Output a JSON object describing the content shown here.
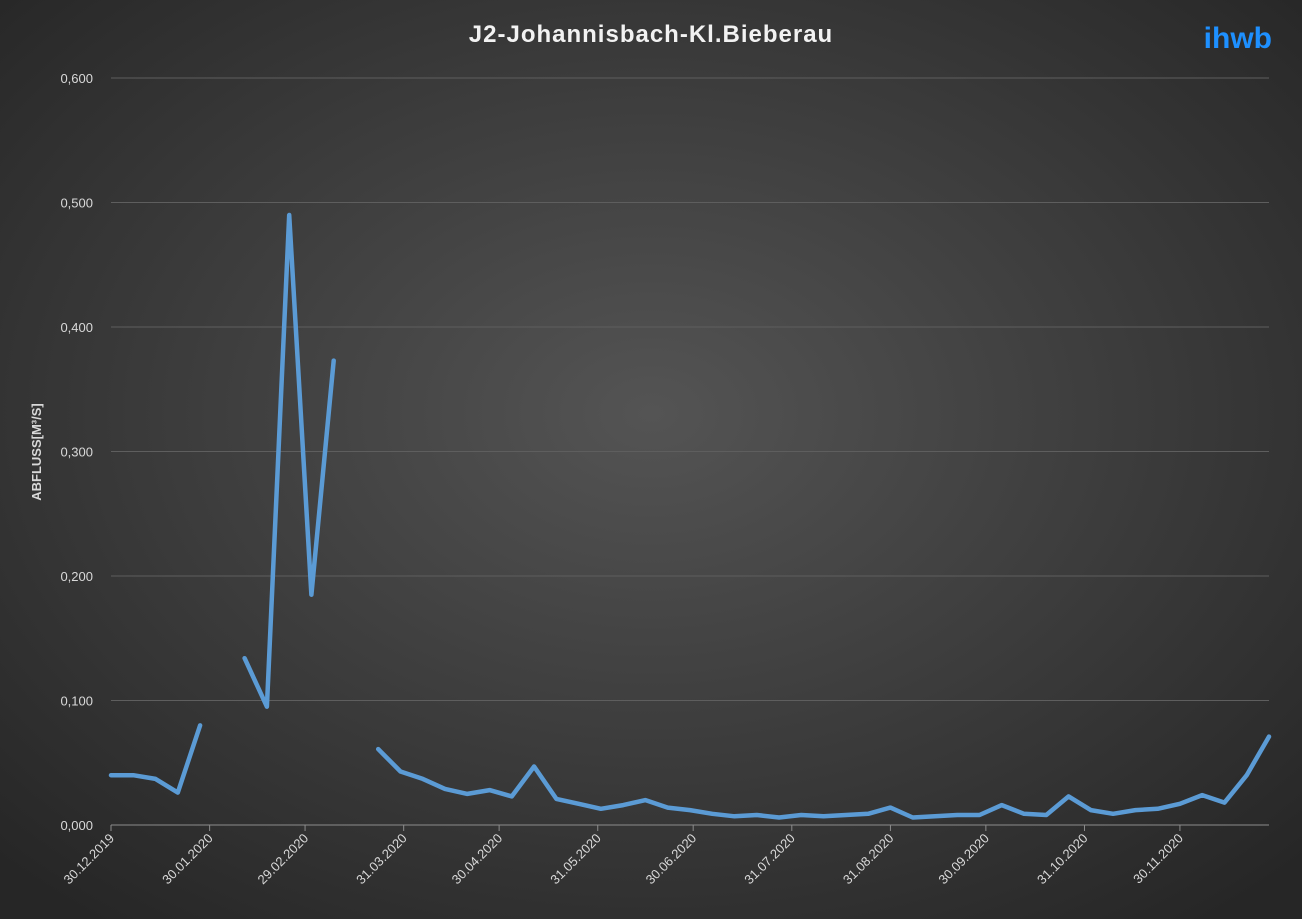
{
  "chart_data": {
    "type": "line",
    "title": "J2-Johannisbach-Kl.Bieberau",
    "logo": "ihwb",
    "y_label": "ABFLUSS[M³/S]",
    "x": [
      "2019-12-30",
      "2020-01-06",
      "2020-01-13",
      "2020-01-20",
      "2020-01-27",
      "2020-02-03",
      "2020-02-10",
      "2020-02-17",
      "2020-02-24",
      "2020-03-02",
      "2020-03-09",
      "2020-03-16",
      "2020-03-23",
      "2020-03-30",
      "2020-04-06",
      "2020-04-13",
      "2020-04-20",
      "2020-04-27",
      "2020-05-04",
      "2020-05-11",
      "2020-05-18",
      "2020-05-25",
      "2020-06-01",
      "2020-06-08",
      "2020-06-15",
      "2020-06-22",
      "2020-06-29",
      "2020-07-06",
      "2020-07-13",
      "2020-07-20",
      "2020-07-27",
      "2020-08-03",
      "2020-08-10",
      "2020-08-17",
      "2020-08-24",
      "2020-08-31",
      "2020-09-07",
      "2020-09-14",
      "2020-09-21",
      "2020-09-28",
      "2020-10-05",
      "2020-10-12",
      "2020-10-19",
      "2020-10-26",
      "2020-11-02",
      "2020-11-09",
      "2020-11-16",
      "2020-11-23",
      "2020-11-30",
      "2020-12-07",
      "2020-12-14",
      "2020-12-21",
      "2020-12-28"
    ],
    "series": [
      {
        "name": "Abfluss",
        "color": "#5b9bd5",
        "values": [
          0.04,
          0.04,
          0.037,
          0.026,
          0.08,
          null,
          0.134,
          0.095,
          0.49,
          0.185,
          0.373,
          null,
          0.061,
          0.043,
          0.037,
          0.029,
          0.025,
          0.028,
          0.023,
          0.047,
          0.021,
          0.017,
          0.013,
          0.016,
          0.02,
          0.014,
          0.012,
          0.009,
          0.007,
          0.008,
          0.006,
          0.008,
          0.007,
          0.008,
          0.009,
          0.014,
          0.006,
          0.007,
          0.008,
          0.008,
          0.016,
          0.009,
          0.008,
          0.023,
          0.012,
          0.009,
          0.012,
          0.013,
          0.017,
          0.024,
          0.018,
          0.04,
          0.071
        ]
      }
    ],
    "xlim": [
      "2019-12-30",
      "2020-12-28"
    ],
    "xticks": [
      {
        "value": "2019-12-30",
        "label": "30.12.2019"
      },
      {
        "value": "2020-01-30",
        "label": "30.01.2020"
      },
      {
        "value": "2020-02-29",
        "label": "29.02.2020"
      },
      {
        "value": "2020-03-31",
        "label": "31.03.2020"
      },
      {
        "value": "2020-04-30",
        "label": "30.04.2020"
      },
      {
        "value": "2020-05-31",
        "label": "31.05.2020"
      },
      {
        "value": "2020-06-30",
        "label": "30.06.2020"
      },
      {
        "value": "2020-07-31",
        "label": "31.07.2020"
      },
      {
        "value": "2020-08-31",
        "label": "31.08.2020"
      },
      {
        "value": "2020-09-30",
        "label": "30.09.2020"
      },
      {
        "value": "2020-10-31",
        "label": "31.10.2020"
      },
      {
        "value": "2020-11-30",
        "label": "30.11.2020"
      }
    ],
    "ylim": [
      0,
      0.6
    ],
    "yticks": [
      {
        "value": 0,
        "label": "0,000"
      },
      {
        "value": 0.1,
        "label": "0,100"
      },
      {
        "value": 0.2,
        "label": "0,200"
      },
      {
        "value": 0.3,
        "label": "0,300"
      },
      {
        "value": 0.4,
        "label": "0,400"
      },
      {
        "value": 0.5,
        "label": "0,500"
      },
      {
        "value": 0.6,
        "label": "0,600"
      }
    ],
    "grid": true
  }
}
